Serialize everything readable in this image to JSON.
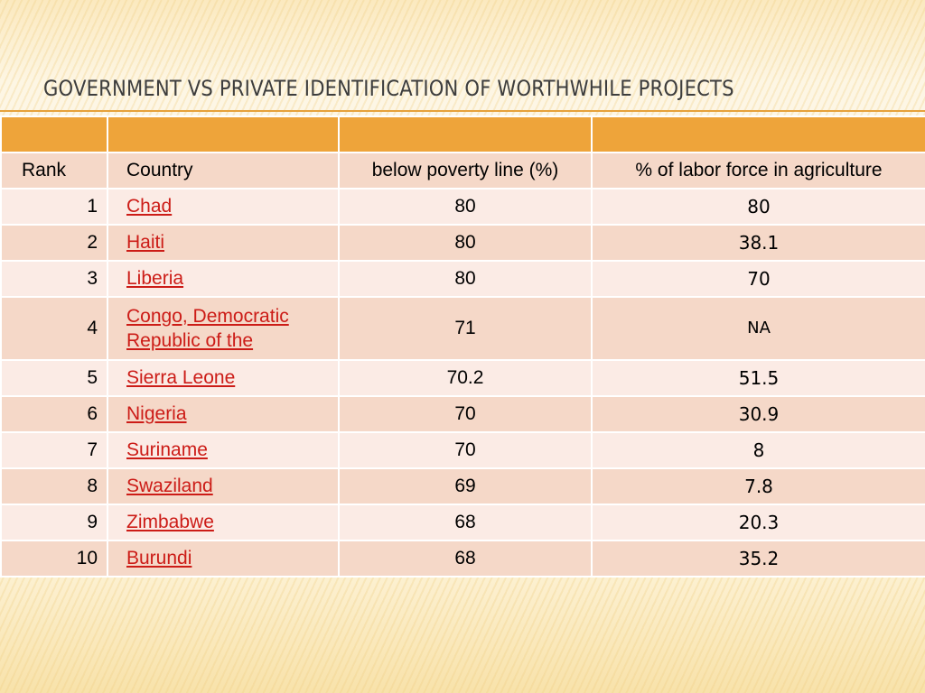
{
  "title": "Government vs Private Identification of Worthwhile Projects",
  "colors": {
    "accent": "#eea43a",
    "row_dark": "#f5d8c8",
    "row_light": "#fbebe5",
    "link": "#cc1c17"
  },
  "table": {
    "columns": [
      "Rank",
      "Country",
      "below poverty line (%)",
      "% of labor force in agriculture"
    ],
    "rows": [
      {
        "rank": "1",
        "country": "Chad",
        "poverty": "80",
        "labor": "80"
      },
      {
        "rank": "2",
        "country": "Haiti",
        "poverty": "80",
        "labor": "38.1"
      },
      {
        "rank": "3",
        "country": "Liberia",
        "poverty": "80",
        "labor": "70"
      },
      {
        "rank": "4",
        "country": "Congo, Democratic Republic of the",
        "poverty": "71",
        "labor": "NA"
      },
      {
        "rank": "5",
        "country": "Sierra Leone",
        "poverty": "70.2",
        "labor": "51.5"
      },
      {
        "rank": "6",
        "country": "Nigeria",
        "poverty": "70",
        "labor": "30.9"
      },
      {
        "rank": "7",
        "country": "Suriname",
        "poverty": "70",
        "labor": "8"
      },
      {
        "rank": "8",
        "country": "Swaziland",
        "poverty": "69",
        "labor": "7.8"
      },
      {
        "rank": "9",
        "country": "Zimbabwe",
        "poverty": "68",
        "labor": "20.3"
      },
      {
        "rank": "10",
        "country": "Burundi",
        "poverty": "68",
        "labor": "35.2"
      }
    ]
  }
}
